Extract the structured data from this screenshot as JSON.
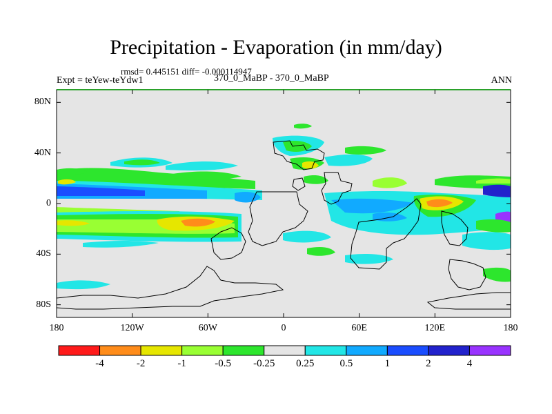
{
  "title": "Precipitation - Evaporation (in mm/day)",
  "stats": "rmsd= 0.445151 diff= -0.000114947",
  "experiment": "Expt = teYew-teYdw1",
  "case": "370_0_MaBP - 370_0_MaBP",
  "season": "ANN",
  "map": {
    "projection": "cylindrical-equidistant",
    "lon_range": [
      -180,
      180
    ],
    "lat_range": [
      -90,
      90
    ],
    "background_color": "#e5e5e5",
    "frame_top_color": "#2aa12a",
    "coastline_color": "#000000"
  },
  "axes": {
    "lat_labels": [
      "80N",
      "40N",
      "0",
      "40S",
      "80S"
    ],
    "lat_values": [
      80,
      40,
      0,
      -40,
      -80
    ],
    "lon_labels": [
      "180",
      "120W",
      "60W",
      "0",
      "60E",
      "120E",
      "180"
    ],
    "lon_values": [
      -180,
      -120,
      -60,
      0,
      60,
      120,
      180
    ]
  },
  "colorbar": {
    "labels": [
      "-4",
      "-2",
      "-1",
      "-0.5",
      "-0.25",
      "0.25",
      "0.5",
      "1",
      "2",
      "4"
    ],
    "colors": [
      "#ff1a1a",
      "#ff8c1a",
      "#e6e600",
      "#99ff33",
      "#2de62d",
      "#e5e5e5",
      "#22e6e6",
      "#11aaff",
      "#1a4dff",
      "#2222cc",
      "#9933ff"
    ]
  },
  "fields": [
    {
      "name": "tropical-north-positive",
      "color": "#22e6e6",
      "lon": [
        -180,
        180
      ],
      "lat": [
        2,
        8
      ]
    },
    {
      "name": "tropical-north-core",
      "color": "#1a4dff",
      "lon": [
        -180,
        -120
      ],
      "lat": [
        4,
        7
      ]
    },
    {
      "name": "subtropical-south-negative",
      "color": "#2de62d",
      "lon": [
        -180,
        -20
      ],
      "lat": [
        -22,
        -8
      ]
    },
    {
      "name": "south-pacific-max",
      "color": "#e6e600",
      "lon": [
        -100,
        -65
      ],
      "lat": [
        -19,
        -11
      ]
    },
    {
      "name": "south-pacific-core",
      "color": "#ff8c1a",
      "lon": [
        -85,
        -75
      ],
      "lat": [
        -17,
        -13
      ]
    },
    {
      "name": "east-asia-max",
      "color": "#ff8c1a",
      "lon": [
        120,
        135
      ],
      "lat": [
        -4,
        2
      ]
    }
  ]
}
